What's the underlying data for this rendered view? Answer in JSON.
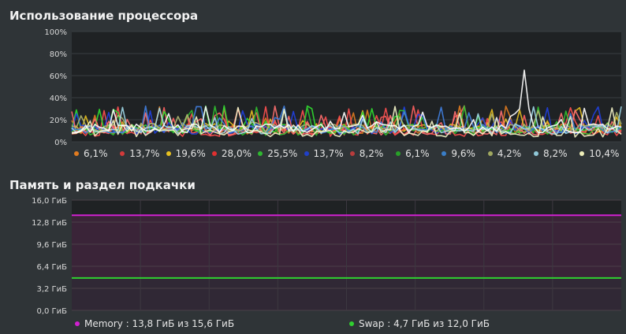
{
  "cpu": {
    "title": "Использование процессора",
    "y_ticks": [
      "100%",
      "80%",
      "60%",
      "40%",
      "20%",
      "0%"
    ],
    "cores": [
      {
        "value": "6,1%",
        "color": "#e07b20"
      },
      {
        "value": "13,7%",
        "color": "#d23a3a"
      },
      {
        "value": "19,6%",
        "color": "#e6c020"
      },
      {
        "value": "28,0%",
        "color": "#e03030"
      },
      {
        "value": "25,5%",
        "color": "#2fb830"
      },
      {
        "value": "13,7%",
        "color": "#2040c8"
      },
      {
        "value": "8,2%",
        "color": "#b83c3c"
      },
      {
        "value": "6,1%",
        "color": "#28a028"
      },
      {
        "value": "9,6%",
        "color": "#3a7ec8"
      },
      {
        "value": "4,2%",
        "color": "#a0a860"
      },
      {
        "value": "8,2%",
        "color": "#90c8d8"
      },
      {
        "value": "10,4%",
        "color": "#eeeeb8"
      }
    ],
    "chart_colors": [
      "#e07b20",
      "#ff6060",
      "#e6c020",
      "#ff5050",
      "#30e030",
      "#2040e0",
      "#ff7070",
      "#30c030",
      "#4080e0",
      "#b0b870",
      "#a0d8e8",
      "#f4f4c8",
      "#ffffff"
    ]
  },
  "memory": {
    "title": "Память и раздел подкачки",
    "y_ticks": [
      "16,0 ГиБ",
      "12,8 ГиБ",
      "9,6 ГиБ",
      "6,4 ГиБ",
      "3,2 ГиБ",
      "0,0 ГиБ"
    ],
    "legend": [
      {
        "label": "Memory : 13,8 ГиБ из 15,6 ГиБ",
        "color": "#d020d0"
      },
      {
        "label": "Swap : 4,7 ГиБ из 12,0 ГиБ",
        "color": "#30d030"
      }
    ]
  },
  "chart_data": [
    {
      "type": "line",
      "title": "Использование процессора",
      "ylim": [
        0,
        100
      ],
      "y_unit": "%",
      "series": [
        {
          "name": "6,1%",
          "latest": 6.1
        },
        {
          "name": "13,7%",
          "latest": 13.7
        },
        {
          "name": "19,6%",
          "latest": 19.6
        },
        {
          "name": "28,0%",
          "latest": 28.0
        },
        {
          "name": "25,5%",
          "latest": 25.5
        },
        {
          "name": "13,7%",
          "latest": 13.7
        },
        {
          "name": "8,2%",
          "latest": 8.2
        },
        {
          "name": "6,1%",
          "latest": 6.1
        },
        {
          "name": "9,6%",
          "latest": 9.6
        },
        {
          "name": "4,2%",
          "latest": 4.2
        },
        {
          "name": "8,2%",
          "latest": 8.2
        },
        {
          "name": "10,4%",
          "latest": 10.4
        }
      ],
      "peak_value": 65,
      "grid": true
    },
    {
      "type": "line",
      "title": "Память и раздел подкачки",
      "ylim": [
        0,
        16
      ],
      "y_unit": "ГиБ",
      "series": [
        {
          "name": "Memory",
          "values": [
            13.8
          ],
          "color": "#d020d0"
        },
        {
          "name": "Swap",
          "values": [
            4.7
          ],
          "color": "#30d030"
        }
      ],
      "grid": true
    }
  ]
}
